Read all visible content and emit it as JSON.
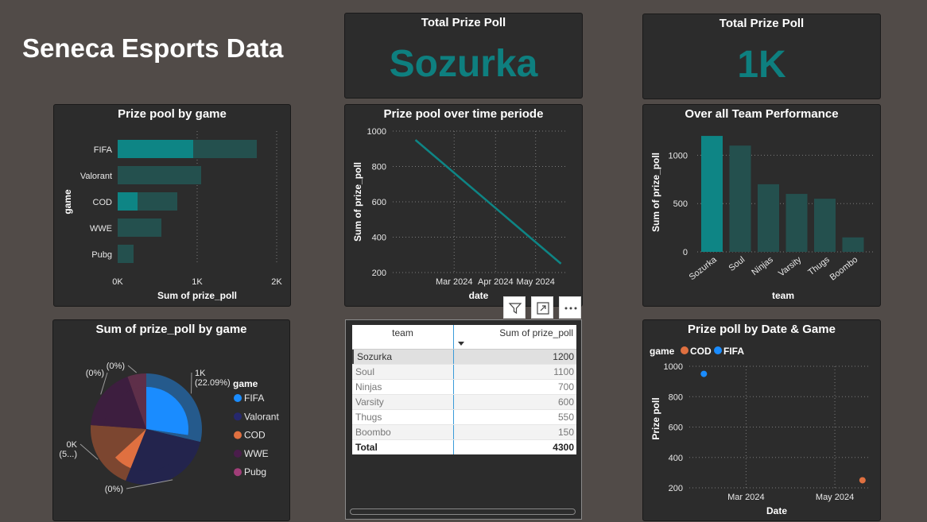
{
  "page_title": "Seneca Esports Data",
  "kpi1": {
    "title": "Total Prize Poll",
    "value": "Sozurka"
  },
  "kpi2": {
    "title": "Total Prize Poll",
    "value": "1K"
  },
  "colors": {
    "teal": "#0e8585",
    "teal_dim": "#24504e",
    "blue": "#1a8cff",
    "navy": "#26286e",
    "orange": "#e07040",
    "purple": "#4a1d4b",
    "pink": "#a13e79",
    "card_bg": "#2c2c2c",
    "page_bg": "#514b48"
  },
  "visual_header_icons": [
    "filter-icon",
    "focus-mode-icon",
    "more-options-icon"
  ],
  "chart_data": [
    {
      "id": "prize_by_game",
      "type": "bar",
      "orientation": "horizontal",
      "title": "Prize pool by game",
      "xlabel": "Sum of prize_poll",
      "ylabel": "game",
      "categories": [
        "FIFA",
        "Valorant",
        "COD",
        "WWE",
        "Pubg"
      ],
      "values": [
        1750,
        1050,
        750,
        550,
        200
      ],
      "highlighted_values": [
        950,
        0,
        250,
        0,
        0
      ],
      "xlim": [
        0,
        2000
      ],
      "xticks": [
        "0K",
        "1K",
        "2K"
      ],
      "grid": true
    },
    {
      "id": "prize_over_time",
      "type": "line",
      "title": "Prize pool over time periode",
      "xlabel": "date",
      "ylabel": "Sum of prize_poll",
      "x": [
        "2024-02-01",
        "2024-05-20"
      ],
      "y": [
        950,
        250
      ],
      "xticks": [
        "Mar 2024",
        "Apr 2024",
        "May 2024"
      ],
      "yticks": [
        "200",
        "400",
        "600",
        "800",
        "1000"
      ],
      "ylim": [
        200,
        1000
      ],
      "grid": true
    },
    {
      "id": "team_performance",
      "type": "bar",
      "title": "Over all Team Performance",
      "xlabel": "team",
      "ylabel": "Sum of prize_poll",
      "categories": [
        "Sozurka",
        "Soul",
        "Ninjas",
        "Varsity",
        "Thugs",
        "Boombo"
      ],
      "values": [
        1200,
        1100,
        700,
        600,
        550,
        150
      ],
      "highlighted_index": 0,
      "yticks": [
        "0",
        "500",
        "1000"
      ],
      "ylim": [
        0,
        1250
      ],
      "grid": true
    },
    {
      "id": "prize_share_by_game",
      "type": "pie",
      "title": "Sum of prize_poll by game",
      "legend_title": "game",
      "legend_position": "right",
      "categories": [
        "FIFA",
        "Valorant",
        "COD",
        "WWE",
        "Pubg"
      ],
      "values": [
        1000,
        950,
        700,
        640,
        190
      ],
      "highlighted_values": [
        950,
        0,
        250,
        0,
        0
      ],
      "labels": [
        {
          "lines": [
            "1K",
            "(22.09%)"
          ]
        },
        {
          "lines": [
            "(0%)"
          ]
        },
        {
          "lines": [
            "0K",
            "(5...)"
          ]
        },
        {
          "lines": [
            "(0%)"
          ]
        },
        {
          "lines": [
            "(0%)"
          ]
        }
      ]
    },
    {
      "id": "prize_by_date_game",
      "type": "scatter",
      "title": "Prize poll by Date & Game",
      "legend_title": "game",
      "legend_position": "top-left",
      "xlabel": "Date",
      "ylabel": "Prize poll",
      "series": [
        {
          "name": "COD",
          "points": [
            {
              "x": "2024-05-20",
              "y": 250
            }
          ]
        },
        {
          "name": "FIFA",
          "points": [
            {
              "x": "2024-02-01",
              "y": 950
            }
          ]
        }
      ],
      "xticks": [
        "Mar 2024",
        "May 2024"
      ],
      "yticks": [
        "200",
        "400",
        "600",
        "800",
        "1000"
      ],
      "ylim": [
        200,
        1000
      ],
      "grid": true
    }
  ],
  "table": {
    "headers": [
      "team",
      "Sum of prize_poll"
    ],
    "rows": [
      [
        "Sozurka",
        "1200"
      ],
      [
        "Soul",
        "1100"
      ],
      [
        "Ninjas",
        "700"
      ],
      [
        "Varsity",
        "600"
      ],
      [
        "Thugs",
        "550"
      ],
      [
        "Boombo",
        "150"
      ]
    ],
    "total": [
      "Total",
      "4300"
    ]
  }
}
